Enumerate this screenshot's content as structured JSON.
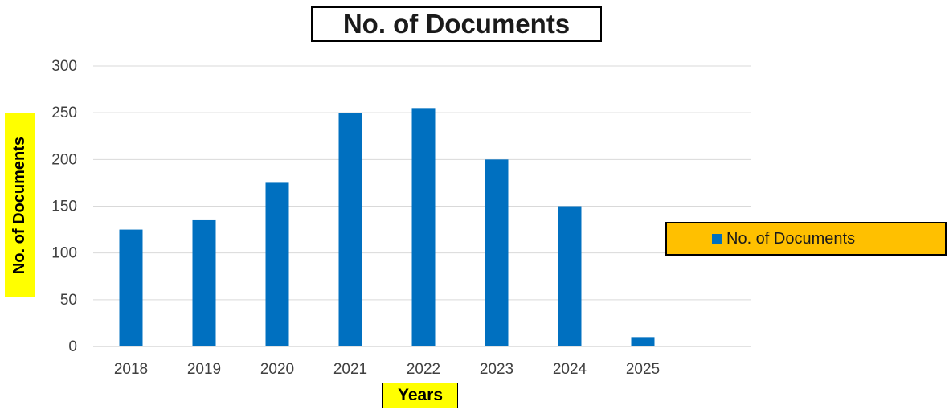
{
  "chart_data": {
    "type": "bar",
    "title": "No. of Documents",
    "xlabel": "Years",
    "ylabel": "No. of Documents",
    "categories": [
      "2018",
      "2019",
      "2020",
      "2021",
      "2022",
      "2023",
      "2024",
      "2025"
    ],
    "series": [
      {
        "name": "No. of Documents",
        "values": [
          125,
          135,
          175,
          250,
          255,
          200,
          150,
          10
        ],
        "color": "#0070c0"
      }
    ],
    "yticks": [
      "0",
      "50",
      "100",
      "150",
      "200",
      "250",
      "300"
    ],
    "ylim": [
      0,
      300
    ],
    "grid": true,
    "legend_position": "right",
    "colors": {
      "bar": "#0070c0",
      "gridline": "#d9d9d9",
      "axis_label_highlight": "#ffff00",
      "legend_background": "#ffc000"
    }
  }
}
